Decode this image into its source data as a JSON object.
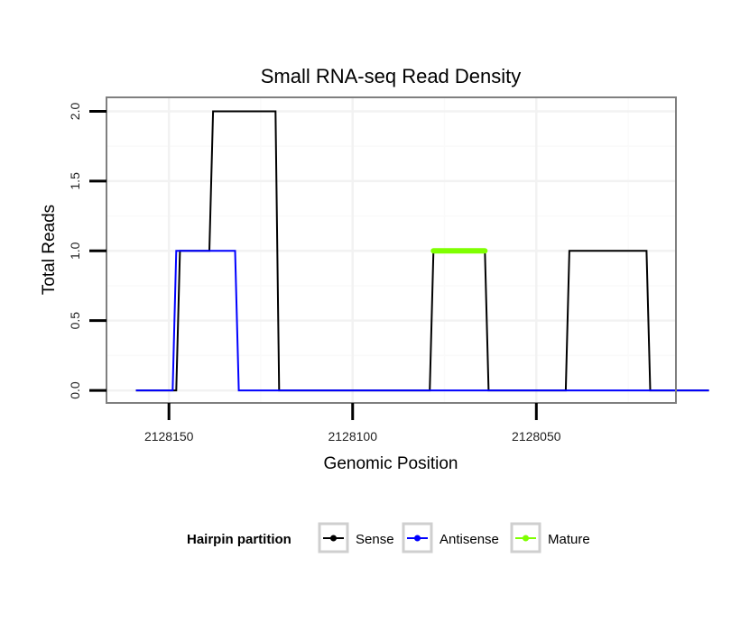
{
  "chart_data": {
    "type": "line",
    "title": "Small RNA-seq Read Density",
    "xlabel": "Genomic Position",
    "ylabel": "Total Reads",
    "x_reversed": true,
    "xlim": [
      2128167,
      2128012
    ],
    "ylim": [
      -0.09,
      2.1
    ],
    "x_ticks": [
      2128150,
      2128100,
      2128050
    ],
    "x_tick_labels": [
      "2128150",
      "2128100",
      "2128050"
    ],
    "y_ticks": [
      0.0,
      0.5,
      1.0,
      1.5,
      2.0
    ],
    "y_tick_labels": [
      "0.0",
      "0.5",
      "1.0",
      "1.5",
      "2.0"
    ],
    "grid": true,
    "series": [
      {
        "name": "Sense",
        "color": "#000000",
        "x": [
          2128159,
          2128148,
          2128147,
          2128139,
          2128138,
          2128121,
          2128120,
          2128079,
          2128078,
          2128064,
          2128063,
          2128042,
          2128041,
          2128020,
          2128019,
          2128003
        ],
        "y": [
          0,
          0,
          1,
          1,
          2,
          2,
          0,
          0,
          1,
          1,
          0,
          0,
          1,
          1,
          0,
          0
        ]
      },
      {
        "name": "Antisense",
        "color": "#0000ff",
        "x": [
          2128159,
          2128149,
          2128148,
          2128132,
          2128131,
          2128121,
          2128120,
          2128079,
          2128078,
          2128064,
          2128063,
          2128042,
          2128041,
          2128020,
          2128019,
          2128003
        ],
        "y": [
          0,
          0,
          1,
          1,
          0,
          0,
          0,
          0,
          0,
          0,
          0,
          0,
          0,
          0,
          0,
          0
        ]
      },
      {
        "name": "Mature",
        "color": "#7fff00",
        "x": [
          2128078,
          2128064
        ],
        "y": [
          1,
          1
        ]
      }
    ],
    "legend": {
      "title": "Hairpin partition",
      "placement": "bottom",
      "entries": [
        "Sense",
        "Antisense",
        "Mature"
      ]
    }
  }
}
